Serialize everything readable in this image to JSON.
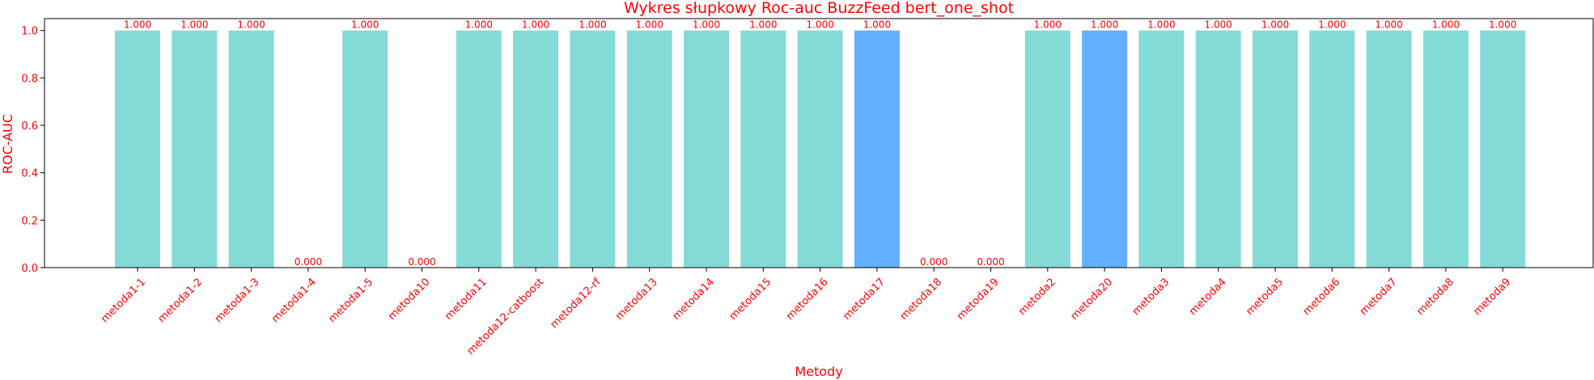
{
  "chart_data": {
    "type": "bar",
    "title": "Wykres słupkowy Roc-auc BuzzFeed bert_one_shot",
    "xlabel": "Metody",
    "ylabel": "ROC-AUC",
    "ylim": [
      0,
      1.05
    ],
    "yticks": [
      "0.0",
      "0.2",
      "0.4",
      "0.6",
      "0.8",
      "1.0"
    ],
    "categories": [
      "metoda1-1",
      "metoda1-2",
      "metoda1-3",
      "metoda1-4",
      "metoda1-5",
      "metoda10",
      "metoda11",
      "metoda12-catboost",
      "metoda12-rf",
      "metoda13",
      "metoda14",
      "metoda15",
      "metoda16",
      "metoda17",
      "metoda18",
      "metoda19",
      "metoda2",
      "metoda20",
      "metoda3",
      "metoda4",
      "metoda5",
      "metoda6",
      "metoda7",
      "metoda8",
      "metoda9"
    ],
    "values": [
      1,
      1,
      1,
      0,
      1,
      0,
      1,
      1,
      1,
      1,
      1,
      1,
      1,
      1,
      0,
      0,
      1,
      1,
      1,
      1,
      1,
      1,
      1,
      1,
      1
    ],
    "value_labels": [
      "1.000",
      "1.000",
      "1.000",
      "0.000",
      "1.000",
      "0.000",
      "1.000",
      "1.000",
      "1.000",
      "1.000",
      "1.000",
      "1.000",
      "1.000",
      "1.000",
      "0.000",
      "0.000",
      "1.000",
      "1.000",
      "1.000",
      "1.000",
      "1.000",
      "1.000",
      "1.000",
      "1.000",
      "1.000"
    ],
    "highlighted": [
      "metoda17",
      "metoda20"
    ],
    "grid": false,
    "colors": {
      "bar": "#84dad6",
      "highlight": "#62b0fe",
      "text": "#ff0000",
      "axis": "#000000"
    }
  }
}
